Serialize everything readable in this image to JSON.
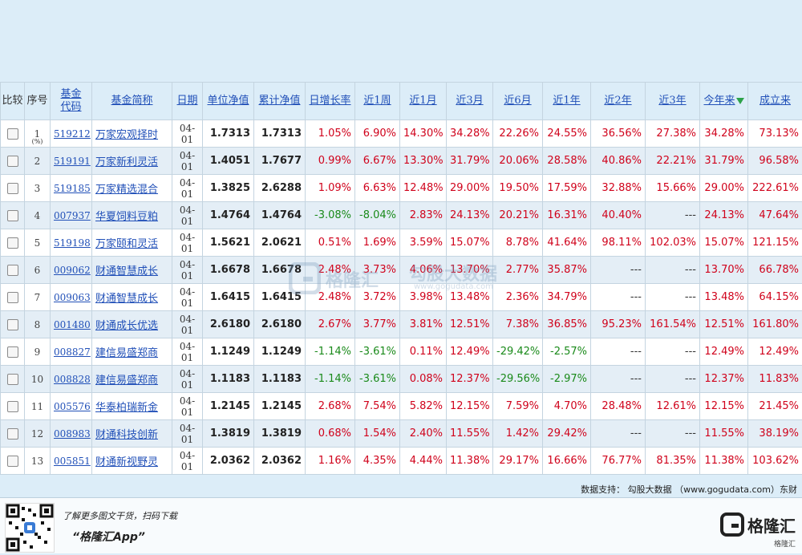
{
  "headers": {
    "compare": "比较",
    "index": "序号",
    "code_line1": "基金",
    "code_line2": "代码",
    "name": "基金简称",
    "date": "日期",
    "unit_nav": "单位净值",
    "acc_nav": "累计净值",
    "daily": "日增长率",
    "w1": "近1周",
    "m1": "近1月",
    "m3": "近3月",
    "m6": "近6月",
    "y1": "近1年",
    "y2": "近2年",
    "y3": "近3年",
    "ytd": "今年来",
    "since": "成立来"
  },
  "pct_unit": "(%)",
  "rows": [
    {
      "idx": "1",
      "code": "519212",
      "name": "万家宏观择时",
      "date": "04-01",
      "nav": "1.7313",
      "acc": "1.7313",
      "d": "1.05%",
      "w1": "6.90%",
      "m1": "14.30%",
      "m3": "34.28%",
      "m6": "22.26%",
      "y1": "24.55%",
      "y2": "36.56%",
      "y3": "27.38%",
      "ytd": "34.28%",
      "since": "73.13%"
    },
    {
      "idx": "2",
      "code": "519191",
      "name": "万家新利灵活",
      "date": "04-01",
      "nav": "1.4051",
      "acc": "1.7677",
      "d": "0.99%",
      "w1": "6.67%",
      "m1": "13.30%",
      "m3": "31.79%",
      "m6": "20.06%",
      "y1": "28.58%",
      "y2": "40.86%",
      "y3": "22.21%",
      "ytd": "31.79%",
      "since": "96.58%"
    },
    {
      "idx": "3",
      "code": "519185",
      "name": "万家精选混合",
      "date": "04-01",
      "nav": "1.3825",
      "acc": "2.6288",
      "d": "1.09%",
      "w1": "6.63%",
      "m1": "12.48%",
      "m3": "29.00%",
      "m6": "19.50%",
      "y1": "17.59%",
      "y2": "32.88%",
      "y3": "15.66%",
      "ytd": "29.00%",
      "since": "222.61%"
    },
    {
      "idx": "4",
      "code": "007937",
      "name": "华夏饲料豆粕",
      "date": "04-01",
      "nav": "1.4764",
      "acc": "1.4764",
      "d": "-3.08%",
      "w1": "-8.04%",
      "m1": "2.83%",
      "m3": "24.13%",
      "m6": "20.21%",
      "y1": "16.31%",
      "y2": "40.40%",
      "y3": "---",
      "ytd": "24.13%",
      "since": "47.64%"
    },
    {
      "idx": "5",
      "code": "519198",
      "name": "万家颐和灵活",
      "date": "04-01",
      "nav": "1.5621",
      "acc": "2.0621",
      "d": "0.51%",
      "w1": "1.69%",
      "m1": "3.59%",
      "m3": "15.07%",
      "m6": "8.78%",
      "y1": "41.64%",
      "y2": "98.11%",
      "y3": "102.03%",
      "ytd": "15.07%",
      "since": "121.15%"
    },
    {
      "idx": "6",
      "code": "009062",
      "name": "财通智慧成长",
      "date": "04-01",
      "nav": "1.6678",
      "acc": "1.6678",
      "d": "2.48%",
      "w1": "3.73%",
      "m1": "4.06%",
      "m3": "13.70%",
      "m6": "2.77%",
      "y1": "35.87%",
      "y2": "---",
      "y3": "---",
      "ytd": "13.70%",
      "since": "66.78%"
    },
    {
      "idx": "7",
      "code": "009063",
      "name": "财通智慧成长",
      "date": "04-01",
      "nav": "1.6415",
      "acc": "1.6415",
      "d": "2.48%",
      "w1": "3.72%",
      "m1": "3.98%",
      "m3": "13.48%",
      "m6": "2.36%",
      "y1": "34.79%",
      "y2": "---",
      "y3": "---",
      "ytd": "13.48%",
      "since": "64.15%"
    },
    {
      "idx": "8",
      "code": "001480",
      "name": "财通成长优选",
      "date": "04-01",
      "nav": "2.6180",
      "acc": "2.6180",
      "d": "2.67%",
      "w1": "3.77%",
      "m1": "3.81%",
      "m3": "12.51%",
      "m6": "7.38%",
      "y1": "36.85%",
      "y2": "95.23%",
      "y3": "161.54%",
      "ytd": "12.51%",
      "since": "161.80%"
    },
    {
      "idx": "9",
      "code": "008827",
      "name": "建信易盛郑商",
      "date": "04-01",
      "nav": "1.1249",
      "acc": "1.1249",
      "d": "-1.14%",
      "w1": "-3.61%",
      "m1": "0.11%",
      "m3": "12.49%",
      "m6": "-29.42%",
      "y1": "-2.57%",
      "y2": "---",
      "y3": "---",
      "ytd": "12.49%",
      "since": "12.49%"
    },
    {
      "idx": "10",
      "code": "008828",
      "name": "建信易盛郑商",
      "date": "04-01",
      "nav": "1.1183",
      "acc": "1.1183",
      "d": "-1.14%",
      "w1": "-3.61%",
      "m1": "0.08%",
      "m3": "12.37%",
      "m6": "-29.56%",
      "y1": "-2.97%",
      "y2": "---",
      "y3": "---",
      "ytd": "12.37%",
      "since": "11.83%"
    },
    {
      "idx": "11",
      "code": "005576",
      "name": "华泰柏瑞新金",
      "date": "04-01",
      "nav": "1.2145",
      "acc": "1.2145",
      "d": "2.68%",
      "w1": "7.54%",
      "m1": "5.82%",
      "m3": "12.15%",
      "m6": "7.59%",
      "y1": "4.70%",
      "y2": "28.48%",
      "y3": "12.61%",
      "ytd": "12.15%",
      "since": "21.45%"
    },
    {
      "idx": "12",
      "code": "008983",
      "name": "财通科技创新",
      "date": "04-01",
      "nav": "1.3819",
      "acc": "1.3819",
      "d": "0.68%",
      "w1": "1.54%",
      "m1": "2.40%",
      "m3": "11.55%",
      "m6": "1.42%",
      "y1": "29.42%",
      "y2": "---",
      "y3": "---",
      "ytd": "11.55%",
      "since": "38.19%"
    },
    {
      "idx": "13",
      "code": "005851",
      "name": "财通新视野灵",
      "date": "04-01",
      "nav": "2.0362",
      "acc": "2.0362",
      "d": "1.16%",
      "w1": "4.35%",
      "m1": "4.44%",
      "m3": "11.38%",
      "m6": "29.17%",
      "y1": "16.66%",
      "y2": "76.77%",
      "y3": "81.35%",
      "ytd": "11.38%",
      "since": "103.62%"
    }
  ],
  "watermark": {
    "brand": "格隆汇",
    "brand2": "勾股大数据",
    "url": "www.gogudata.com"
  },
  "source": "数据支持： 勾股大数据 （www.gogudata.com）东财",
  "footer": {
    "promo_line1": "了解更多图文干货，扫码下载",
    "promo_line2": "“格隆汇App”",
    "brand": "格隆汇",
    "brand_sub": "格隆汇"
  },
  "colors": {
    "positive": "#d0021b",
    "negative": "#1a8a1a",
    "link": "#2150b8"
  }
}
